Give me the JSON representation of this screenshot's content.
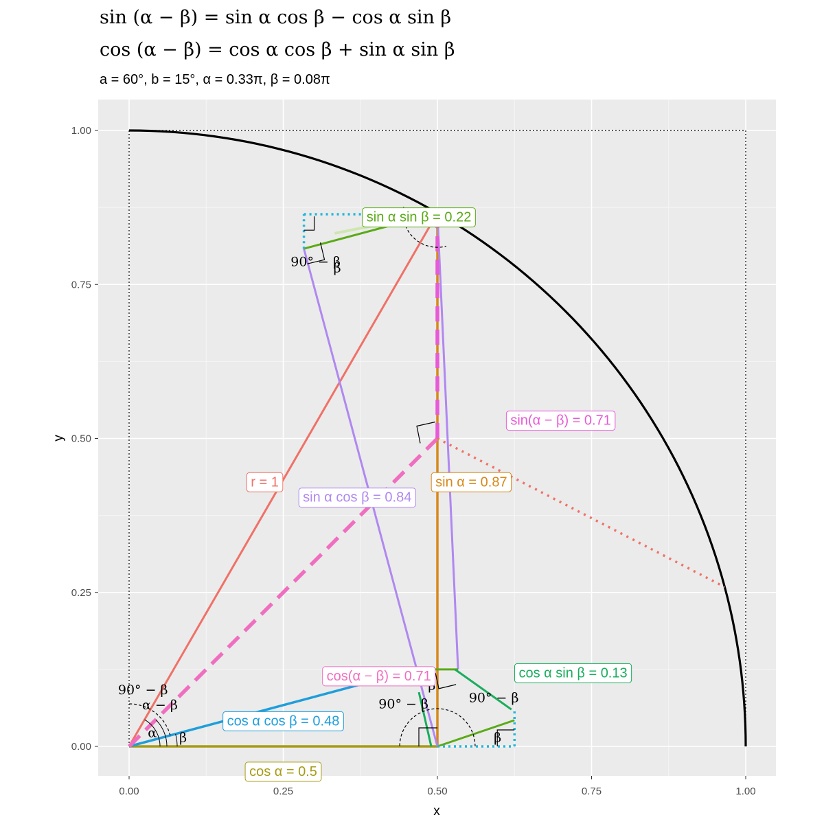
{
  "header": {
    "formula_sin": "sin (α − β) = sin α cos β − cos α sin β",
    "formula_cos": "cos (α − β) = cos α cos β + sin α sin β",
    "params": "a = 60°, b = 15°, α = 0.33π, β = 0.08π"
  },
  "chart_data": {
    "type": "line",
    "xlabel": "x",
    "ylabel": "y",
    "xlim": [
      0,
      1
    ],
    "ylim": [
      0,
      1
    ],
    "x_ticks": [
      "0.00",
      "0.25",
      "0.50",
      "0.75",
      "1.00"
    ],
    "y_ticks": [
      "0.00",
      "0.25",
      "0.50",
      "0.75",
      "1.00"
    ],
    "grid": true,
    "alpha_deg": 60,
    "beta_deg": 15,
    "unit_circle_radius": 1,
    "labels": [
      {
        "text": "r = 1",
        "x": 0.22,
        "y": 0.43,
        "color": "#f07167"
      },
      {
        "text": "sin α = 0.87",
        "x": 0.555,
        "y": 0.43,
        "color": "#d7891a"
      },
      {
        "text": "cos α = 0.5",
        "x": 0.25,
        "y": -0.04,
        "color": "#a69b14"
      },
      {
        "text": "sin α cos β = 0.84",
        "x": 0.37,
        "y": 0.405,
        "color": "#b088f0"
      },
      {
        "text": "sin(α − β) = 0.71",
        "x": 0.7,
        "y": 0.53,
        "color": "#e759d7"
      },
      {
        "text": "cos(α − β) = 0.71",
        "x": 0.405,
        "y": 0.115,
        "color": "#f06ec0"
      },
      {
        "text": "cos α cos β = 0.48",
        "x": 0.25,
        "y": 0.042,
        "color": "#1f9edb"
      },
      {
        "text": "cos α sin β = 0.13",
        "x": 0.72,
        "y": 0.12,
        "color": "#1aad5c"
      },
      {
        "text": "sin α sin β = 0.22",
        "x": 0.47,
        "y": 0.86,
        "color": "#5aaa16"
      }
    ],
    "angle_labels": [
      {
        "text": "90° − β",
        "x": 0.045,
        "y": 0.085
      },
      {
        "text": "α − β",
        "x": 0.1,
        "y": 0.06
      },
      {
        "text": "α",
        "x": 0.075,
        "y": 0.015
      },
      {
        "text": "β",
        "x": 0.175,
        "y": 0.007
      },
      {
        "text": "90° − β",
        "x": 0.605,
        "y": 0.78
      },
      {
        "text": "β",
        "x": 0.675,
        "y": 0.77
      },
      {
        "text": "β",
        "x": 0.982,
        "y": 0.092
      },
      {
        "text": "90° − β",
        "x": 0.89,
        "y": 0.062
      },
      {
        "text": "90° − β",
        "x": 1.183,
        "y": 0.072
      },
      {
        "text": "β",
        "x": 1.195,
        "y": 0.007
      }
    ]
  }
}
